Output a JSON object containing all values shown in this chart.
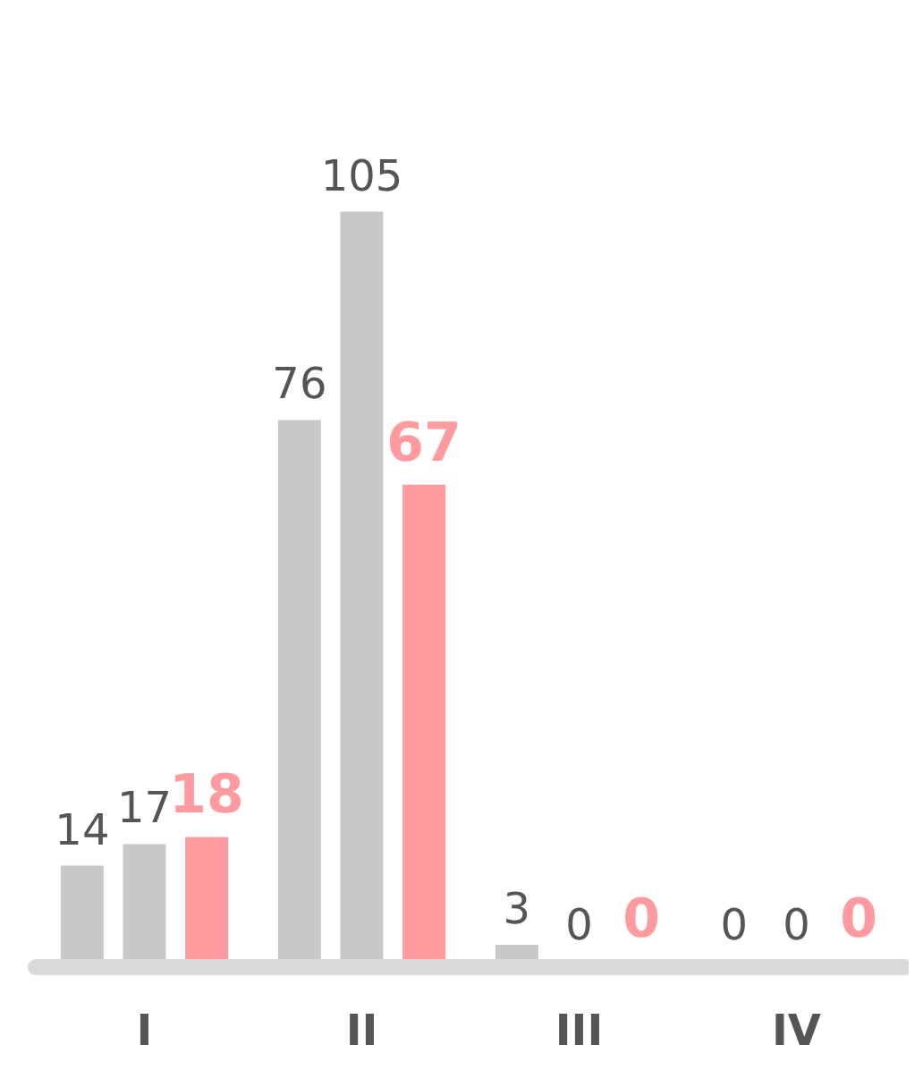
{
  "chart_data": {
    "type": "bar",
    "categories": [
      "I",
      "II",
      "III",
      "IV"
    ],
    "series": [
      {
        "color": "#c8c8c8",
        "values": [
          14,
          76,
          3,
          0
        ]
      },
      {
        "color": "#c8c8c8",
        "values": [
          17,
          105,
          0,
          0
        ]
      },
      {
        "color": "#ff9a9e",
        "values": [
          18,
          67,
          0,
          0
        ]
      }
    ],
    "data_labels": true
  }
}
